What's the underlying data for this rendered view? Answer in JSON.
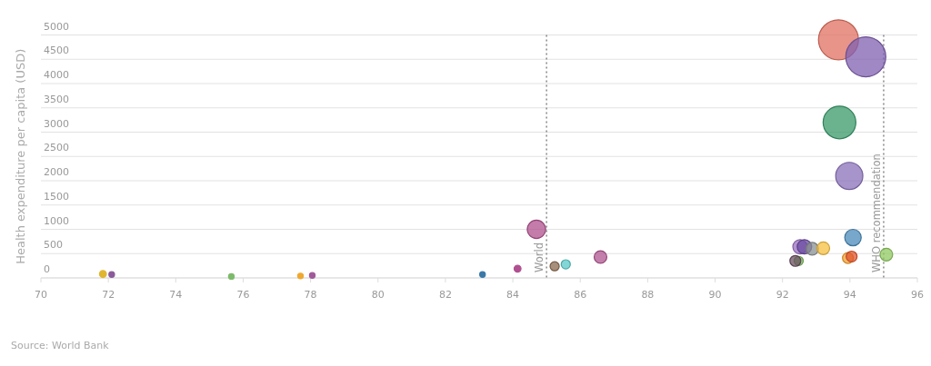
{
  "chart_data": {
    "type": "bubble",
    "ylabel": "Health expenditure per capita (USD)",
    "annotations": [
      "Source: World Bank"
    ],
    "xlim": [
      70,
      96
    ],
    "xticks": [
      70,
      72,
      74,
      76,
      78,
      80,
      82,
      84,
      86,
      88,
      90,
      92,
      94,
      96
    ],
    "ylim": [
      0,
      5000
    ],
    "yticks": [
      0,
      500,
      1000,
      1500,
      2000,
      2500,
      3000,
      3500,
      4000,
      4500,
      5000
    ],
    "grid": "y",
    "x": [
      71.84,
      72.1,
      75.65,
      77.7,
      78.05,
      83.1,
      84.14,
      84.7,
      85.24,
      85.57,
      86.6,
      92.52,
      92.65,
      92.88,
      93.21,
      92.48,
      92.38,
      93.94,
      94.05,
      94.09,
      95.08,
      93.98,
      93.69,
      93.66,
      94.47
    ],
    "values": [
      80,
      70,
      30,
      40,
      50,
      70,
      190,
      1000,
      240,
      280,
      430,
      640,
      640,
      600,
      610,
      350,
      350,
      410,
      440,
      830,
      480,
      2100,
      3200,
      4900,
      4550
    ],
    "sizes": [
      0.03,
      0.02,
      0.02,
      0.02,
      0.02,
      0.02,
      0.03,
      0.21,
      0.052,
      0.052,
      0.1,
      0.13,
      0.13,
      0.1,
      0.1,
      0.052,
      0.074,
      0.074,
      0.074,
      0.17,
      0.1,
      0.46,
      0.67,
      1,
      1
    ],
    "colors": [
      "#e0b530",
      "#8a5a9a",
      "#7dbb6a",
      "#f0a830",
      "#a05a9a",
      "#3a78a8",
      "#b05090",
      "#b0508e",
      "#8a6a50",
      "#5ac8c8",
      "#b05590",
      "#9a70c0",
      "#6a4aa0",
      "#8a9090",
      "#f5c040",
      "#7ab860",
      "#6a5060",
      "#f5a030",
      "#e05530",
      "#4a8ab8",
      "#90c860",
      "#8a70b8",
      "#3a9a6a",
      "#e07060",
      "#8060b0"
    ],
    "ref_lines": [
      {
        "axis": "x",
        "value": 85,
        "label": "World",
        "line_style": "dotted"
      },
      {
        "axis": "x",
        "value": 95,
        "label": "WHO recommendation",
        "line_style": "dotted"
      }
    ]
  }
}
